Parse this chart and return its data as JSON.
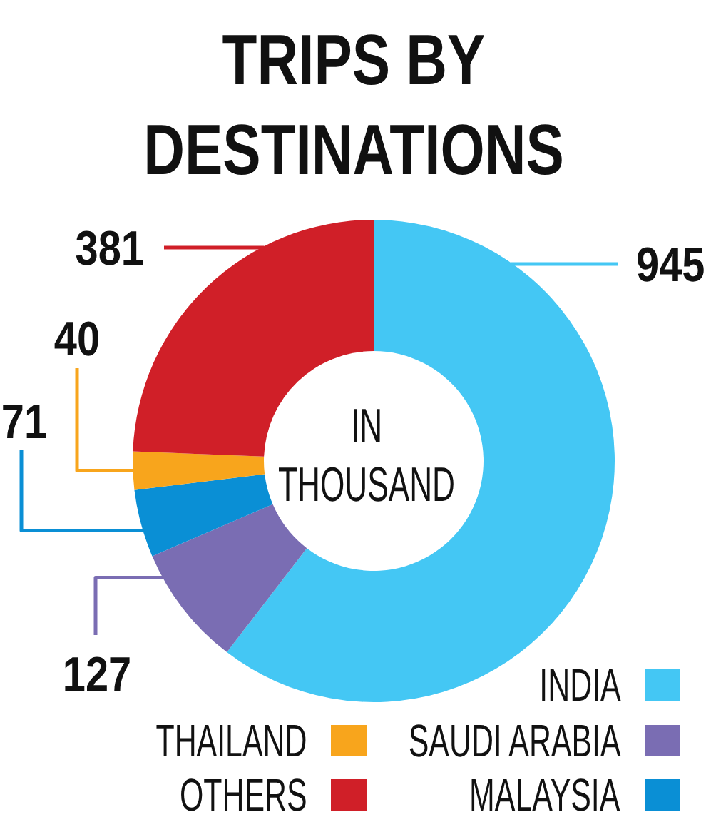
{
  "chart_data": {
    "type": "donut",
    "title": "TRIPS BY DESTINATIONS",
    "categories": [
      "INDIA",
      "SAUDI ARABIA",
      "MALAYSIA",
      "THAILAND",
      "OTHERS"
    ],
    "values": [
      945,
      127,
      71,
      40,
      381
    ],
    "colors": [
      "#44c7f4",
      "#7a6db3",
      "#0a8fd5",
      "#f8a51c",
      "#d01f28"
    ],
    "data_labels": true,
    "legend": "bottom right",
    "annotations": [
      "IN THOUSAND"
    ]
  }
}
